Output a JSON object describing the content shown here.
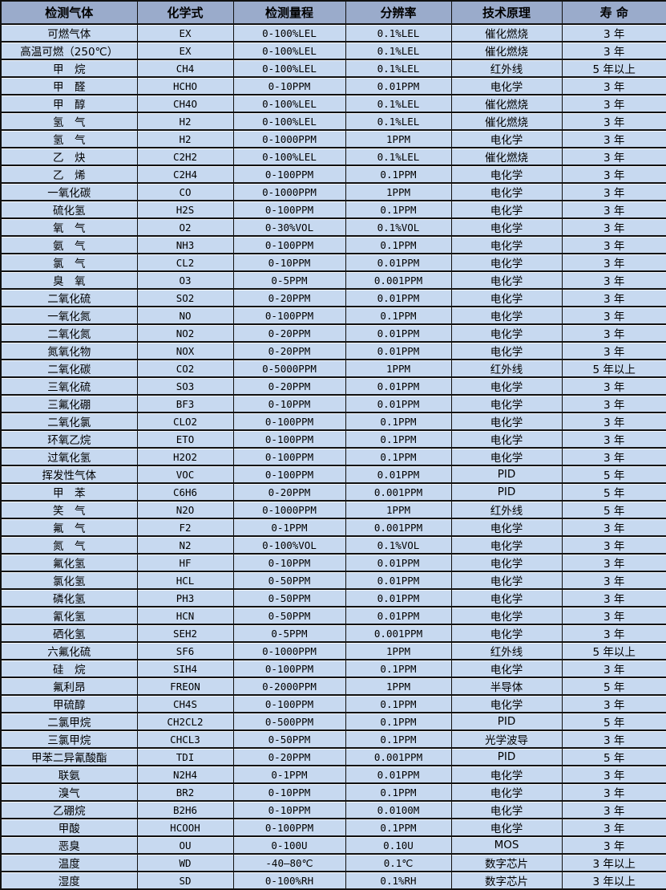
{
  "colors": {
    "header_bg": "#9AABCB",
    "row_bg": "#C7D9F0",
    "border": "#111111",
    "text": "#000000"
  },
  "table": {
    "headers": [
      "检测气体",
      "化学式",
      "检测量程",
      "分辨率",
      "技术原理",
      "寿 命"
    ],
    "rows": [
      [
        "可燃气体",
        "EX",
        "0-100%LEL",
        "0.1%LEL",
        "催化燃烧",
        "3 年"
      ],
      [
        "高温可燃（250℃）",
        "EX",
        "0-100%LEL",
        "0.1%LEL",
        "催化燃烧",
        "3 年"
      ],
      [
        "甲　烷",
        "CH4",
        "0-100%LEL",
        "0.1%LEL",
        "红外线",
        "5 年以上"
      ],
      [
        "甲　醛",
        "HCHO",
        "0-10PPM",
        "0.01PPM",
        "电化学",
        "3 年"
      ],
      [
        "甲　醇",
        "CH4O",
        "0-100%LEL",
        "0.1%LEL",
        "催化燃烧",
        "3 年"
      ],
      [
        "氢　气",
        "H2",
        "0-100%LEL",
        "0.1%LEL",
        "催化燃烧",
        "3 年"
      ],
      [
        "氢　气",
        "H2",
        "0-1000PPM",
        "1PPM",
        "电化学",
        "3 年"
      ],
      [
        "乙　炔",
        "C2H2",
        "0-100%LEL",
        "0.1%LEL",
        "催化燃烧",
        "3 年"
      ],
      [
        "乙　烯",
        "C2H4",
        "0-100PPM",
        "0.1PPM",
        "电化学",
        "3 年"
      ],
      [
        "一氧化碳",
        "CO",
        "0-1000PPM",
        "1PPM",
        "电化学",
        "3 年"
      ],
      [
        "硫化氢",
        "H2S",
        "0-100PPM",
        "0.1PPM",
        "电化学",
        "3 年"
      ],
      [
        "氧　气",
        "O2",
        "0-30%VOL",
        "0.1%VOL",
        "电化学",
        "3 年"
      ],
      [
        "氨　气",
        "NH3",
        "0-100PPM",
        "0.1PPM",
        "电化学",
        "3 年"
      ],
      [
        "氯　气",
        "CL2",
        "0-10PPM",
        "0.01PPM",
        "电化学",
        "3 年"
      ],
      [
        "臭　氧",
        "O3",
        "0-5PPM",
        "0.001PPM",
        "电化学",
        "3 年"
      ],
      [
        "二氧化硫",
        "SO2",
        "0-20PPM",
        "0.01PPM",
        "电化学",
        "3 年"
      ],
      [
        "一氧化氮",
        "NO",
        "0-100PPM",
        "0.1PPM",
        "电化学",
        "3 年"
      ],
      [
        "二氧化氮",
        "NO2",
        "0-20PPM",
        "0.01PPM",
        "电化学",
        "3 年"
      ],
      [
        "氮氧化物",
        "NOX",
        "0-20PPM",
        "0.01PPM",
        "电化学",
        "3 年"
      ],
      [
        "二氧化碳",
        "CO2",
        "0-5000PPM",
        "1PPM",
        "红外线",
        "5 年以上"
      ],
      [
        "三氧化硫",
        "SO3",
        "0-20PPM",
        "0.01PPM",
        "电化学",
        "3 年"
      ],
      [
        "三氟化硼",
        "BF3",
        "0-10PPM",
        "0.01PPM",
        "电化学",
        "3 年"
      ],
      [
        "二氧化氯",
        "CLO2",
        "0-100PPM",
        "0.1PPM",
        "电化学",
        "3 年"
      ],
      [
        "环氧乙烷",
        "ETO",
        "0-100PPM",
        "0.1PPM",
        "电化学",
        "3 年"
      ],
      [
        "过氧化氢",
        "H2O2",
        "0-100PPM",
        "0.1PPM",
        "电化学",
        "3 年"
      ],
      [
        "挥发性气体",
        "VOC",
        "0-100PPM",
        "0.01PPM",
        "PID",
        "5 年"
      ],
      [
        "甲　苯",
        "C6H6",
        "0-20PPM",
        "0.001PPM",
        "PID",
        "5 年"
      ],
      [
        "笑　气",
        "N2O",
        "0-1000PPM",
        "1PPM",
        "红外线",
        "5 年"
      ],
      [
        "氟　气",
        "F2",
        "0-1PPM",
        "0.001PPM",
        "电化学",
        "3 年"
      ],
      [
        "氮　气",
        "N2",
        "0-100%VOL",
        "0.1%VOL",
        "电化学",
        "3 年"
      ],
      [
        "氟化氢",
        "HF",
        "0-10PPM",
        "0.01PPM",
        "电化学",
        "3 年"
      ],
      [
        "氯化氢",
        "HCL",
        "0-50PPM",
        "0.01PPM",
        "电化学",
        "3 年"
      ],
      [
        "磷化氢",
        "PH3",
        "0-50PPM",
        "0.01PPM",
        "电化学",
        "3 年"
      ],
      [
        "氰化氢",
        "HCN",
        "0-50PPM",
        "0.01PPM",
        "电化学",
        "3 年"
      ],
      [
        "硒化氢",
        "SEH2",
        "0-5PPM",
        "0.001PPM",
        "电化学",
        "3 年"
      ],
      [
        "六氟化硫",
        "SF6",
        "0-1000PPM",
        "1PPM",
        "红外线",
        "5 年以上"
      ],
      [
        "硅　烷",
        "SIH4",
        "0-100PPM",
        "0.1PPM",
        "电化学",
        "3 年"
      ],
      [
        "氟利昂",
        "FREON",
        "0-2000PPM",
        "1PPM",
        "半导体",
        "5 年"
      ],
      [
        "甲硫醇",
        "CH4S",
        "0-100PPM",
        "0.1PPM",
        "电化学",
        "3 年"
      ],
      [
        "二氯甲烷",
        "CH2CL2",
        "0-500PPM",
        "0.1PPM",
        "PID",
        "5 年"
      ],
      [
        "三氯甲烷",
        "CHCL3",
        "0-50PPM",
        "0.1PPM",
        "光学波导",
        "3 年"
      ],
      [
        "甲苯二异氰酸酯",
        "TDI",
        "0-20PPM",
        "0.001PPM",
        "PID",
        "5 年"
      ],
      [
        "联氨",
        "N2H4",
        "0-1PPM",
        "0.01PPM",
        "电化学",
        "3 年"
      ],
      [
        "溴气",
        "BR2",
        "0-10PPM",
        "0.1PPM",
        "电化学",
        "3 年"
      ],
      [
        "乙硼烷",
        "B2H6",
        "0-10PPM",
        "0.0100M",
        "电化学",
        "3 年"
      ],
      [
        "甲酸",
        "HCOOH",
        "0-100PPM",
        "0.1PPM",
        "电化学",
        "3 年"
      ],
      [
        "恶臭",
        "OU",
        "0-100U",
        "0.10U",
        "MOS",
        "3 年"
      ],
      [
        "温度",
        "WD",
        "-40—80℃",
        "0.1℃",
        "数字芯片",
        "3 年以上"
      ],
      [
        "湿度",
        "SD",
        "0-100%RH",
        "0.1%RH",
        "数字芯片",
        "3 年以上"
      ]
    ]
  }
}
